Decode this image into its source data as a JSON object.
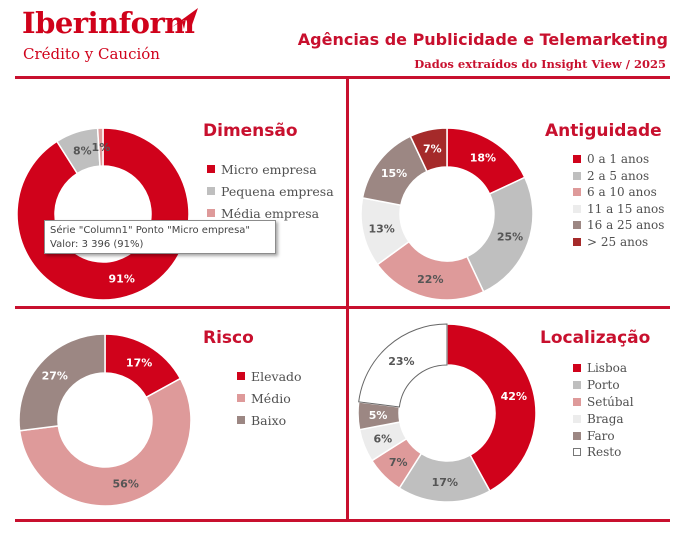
{
  "header": {
    "brand_name": "Iberinform",
    "brand_sub": "Crédito y Caución",
    "title": "Agências de Publicidade e Telemarketing",
    "subtitle": "Dados extraídos do Insight View / 2025"
  },
  "tooltip": {
    "line1": "Série \"Column1\" Ponto \"Micro empresa\"",
    "line2": "Valor: 3 396 (91%)"
  },
  "chart_data": [
    {
      "type": "pie",
      "title": "Dimensão",
      "categories": [
        "Micro empresa",
        "Pequena empresa",
        "Média empresa"
      ],
      "values": [
        91,
        8,
        1
      ],
      "labels": [
        "91%",
        "8%",
        "1%"
      ],
      "colors": [
        "#d0021b",
        "#bfbfbf",
        "#de9a9a"
      ],
      "legend": "right"
    },
    {
      "type": "pie",
      "title": "Antiguidade",
      "categories": [
        "0 a 1 anos",
        "2 a 5 anos",
        "6 a 10 anos",
        "11 a 15 anos",
        "16 a 25 anos",
        "> 25 anos"
      ],
      "values": [
        18,
        25,
        22,
        13,
        15,
        7
      ],
      "labels": [
        "18%",
        "25%",
        "22%",
        "13%",
        "15%",
        "7%"
      ],
      "colors": [
        "#d0021b",
        "#bfbfbf",
        "#de9a9a",
        "#ececec",
        "#9c8783",
        "#a52a2a"
      ],
      "legend": "right"
    },
    {
      "type": "pie",
      "title": "Risco",
      "categories": [
        "Elevado",
        "Médio",
        "Baixo"
      ],
      "values": [
        17,
        56,
        27
      ],
      "labels": [
        "17%",
        "56%",
        "27%"
      ],
      "colors": [
        "#d0021b",
        "#de9a9a",
        "#9c8783"
      ],
      "legend": "right"
    },
    {
      "type": "pie",
      "title": "Localização",
      "categories": [
        "Lisboa",
        "Porto",
        "Setúbal",
        "Braga",
        "Faro",
        "Resto"
      ],
      "values": [
        42,
        17,
        7,
        6,
        5,
        23
      ],
      "labels": [
        "42%",
        "17%",
        "7%",
        "6%",
        "5%",
        "23%"
      ],
      "colors": [
        "#d0021b",
        "#bfbfbf",
        "#de9a9a",
        "#ececec",
        "#9c8783",
        "#ffffff"
      ],
      "legend": "right"
    }
  ]
}
